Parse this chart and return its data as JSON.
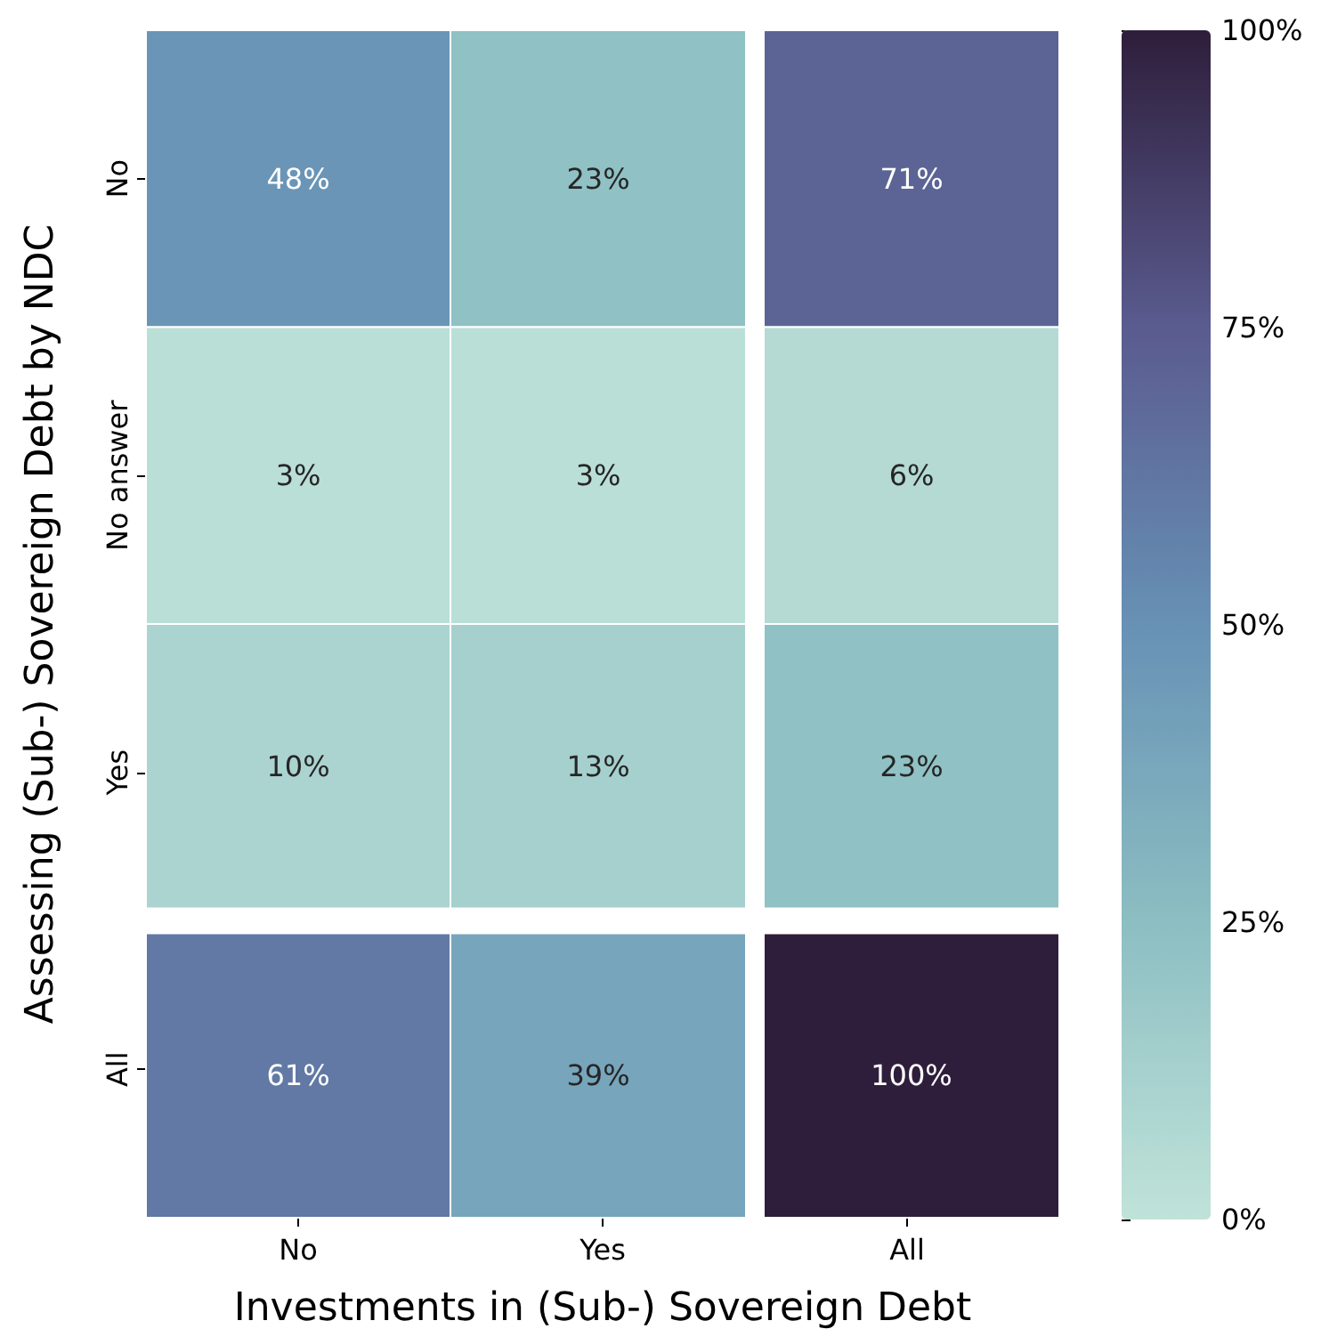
{
  "chart_data": {
    "type": "heatmap",
    "categories": [
      "No",
      "Yes",
      "All"
    ],
    "y_categories": [
      "No",
      "No answer",
      "Yes",
      "All"
    ],
    "cells": [
      [
        48,
        23,
        71
      ],
      [
        3,
        3,
        6
      ],
      [
        10,
        13,
        23
      ],
      [
        61,
        39,
        100
      ]
    ],
    "cell_labels": [
      [
        "48%",
        "23%",
        "71%"
      ],
      [
        "3%",
        "3%",
        "6%"
      ],
      [
        "10%",
        "13%",
        "23%"
      ],
      [
        "61%",
        "39%",
        "100%"
      ]
    ],
    "clim": [
      0,
      100
    ],
    "cticks": [
      {
        "value": 0,
        "label": "0%"
      },
      {
        "value": 25,
        "label": "25%"
      },
      {
        "value": 50,
        "label": "50%"
      },
      {
        "value": 75,
        "label": "75%"
      },
      {
        "value": 100,
        "label": "100%"
      }
    ],
    "xlabel": "Investments in (Sub-) Sovereign Debt",
    "ylabel": "Assessing (Sub-) Sovereign Debt by NDC"
  }
}
